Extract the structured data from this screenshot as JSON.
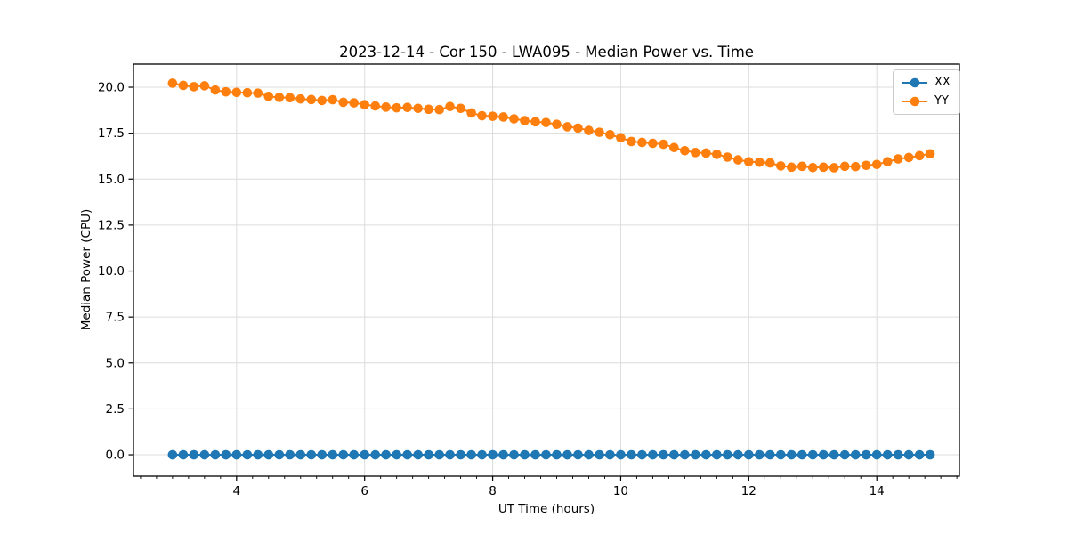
{
  "chart_data": {
    "type": "line",
    "title": "2023-12-14 - Cor 150 - LWA095 - Median Power vs. Time",
    "xlabel": "UT Time (hours)",
    "ylabel": "Median Power (CPU)",
    "xlim": [
      2.39,
      15.29
    ],
    "ylim": [
      -1.16,
      21.26
    ],
    "xticks": [
      4,
      6,
      8,
      10,
      12,
      14
    ],
    "xtick_minor_step": 0.25,
    "yticks": [
      0.0,
      2.5,
      5.0,
      7.5,
      10.0,
      12.5,
      15.0,
      17.5,
      20.0
    ],
    "ytick_decimals": 1,
    "grid": true,
    "grid_color": "#dcdcdc",
    "spine_color": "#000000",
    "legend_position": "upper right",
    "marker": "circle",
    "marker_radius": 5.3,
    "line_width": 2,
    "x": [
      3.0,
      3.167,
      3.333,
      3.5,
      3.667,
      3.833,
      4.0,
      4.167,
      4.333,
      4.5,
      4.667,
      4.833,
      5.0,
      5.167,
      5.333,
      5.5,
      5.667,
      5.833,
      6.0,
      6.167,
      6.333,
      6.5,
      6.667,
      6.833,
      7.0,
      7.167,
      7.333,
      7.5,
      7.667,
      7.833,
      8.0,
      8.167,
      8.333,
      8.5,
      8.667,
      8.833,
      9.0,
      9.167,
      9.333,
      9.5,
      9.667,
      9.833,
      10.0,
      10.167,
      10.333,
      10.5,
      10.667,
      10.833,
      11.0,
      11.167,
      11.333,
      11.5,
      11.667,
      11.833,
      12.0,
      12.167,
      12.333,
      12.5,
      12.667,
      12.833,
      13.0,
      13.167,
      13.333,
      13.5,
      13.667,
      13.833,
      14.0,
      14.167,
      14.333,
      14.5,
      14.667,
      14.833
    ],
    "series": [
      {
        "name": "XX",
        "color": "#1f77b4",
        "values": [
          0.0,
          0.0,
          0.0,
          0.0,
          0.0,
          0.0,
          0.0,
          0.0,
          0.0,
          0.0,
          0.0,
          0.0,
          0.0,
          0.0,
          0.0,
          0.0,
          0.0,
          0.0,
          0.0,
          0.0,
          0.0,
          0.0,
          0.0,
          0.0,
          0.0,
          0.0,
          0.0,
          0.0,
          0.0,
          0.0,
          0.0,
          0.0,
          0.0,
          0.0,
          0.0,
          0.0,
          0.0,
          0.0,
          0.0,
          0.0,
          0.0,
          0.0,
          0.0,
          0.0,
          0.0,
          0.0,
          0.0,
          0.0,
          0.0,
          0.0,
          0.0,
          0.0,
          0.0,
          0.0,
          0.0,
          0.0,
          0.0,
          0.0,
          0.0,
          0.0,
          0.0,
          0.0,
          0.0,
          0.0,
          0.0,
          0.0,
          0.0,
          0.0,
          0.0,
          0.0,
          0.0,
          0.0
        ]
      },
      {
        "name": "YY",
        "color": "#ff7f0e",
        "values": [
          20.22,
          20.1,
          20.03,
          20.08,
          19.85,
          19.75,
          19.72,
          19.7,
          19.68,
          19.5,
          19.45,
          19.43,
          19.36,
          19.33,
          19.28,
          19.32,
          19.18,
          19.15,
          19.05,
          18.98,
          18.92,
          18.88,
          18.9,
          18.85,
          18.8,
          18.78,
          18.95,
          18.85,
          18.6,
          18.45,
          18.42,
          18.38,
          18.28,
          18.18,
          18.12,
          18.08,
          17.98,
          17.85,
          17.78,
          17.65,
          17.55,
          17.42,
          17.25,
          17.05,
          17.0,
          16.95,
          16.9,
          16.72,
          16.55,
          16.45,
          16.42,
          16.35,
          16.2,
          16.05,
          15.95,
          15.92,
          15.88,
          15.72,
          15.65,
          15.7,
          15.63,
          15.65,
          15.62,
          15.7,
          15.68,
          15.75,
          15.8,
          15.95,
          16.1,
          16.18,
          16.28,
          16.38
        ]
      }
    ]
  }
}
